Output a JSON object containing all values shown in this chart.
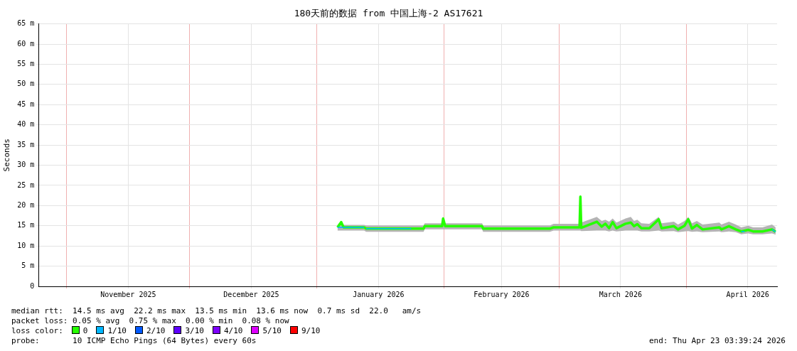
{
  "chart_data": {
    "type": "line",
    "title": "180天前的数据 from 中国上海-2 AS17621",
    "ylabel": "Seconds",
    "xlim": [
      "2025-10-25T03:39",
      "2026-04-23T03:39"
    ],
    "xticks": [
      {
        "value": "2025-11-01",
        "label": null
      },
      {
        "value": "2025-11-16",
        "label": "November 2025"
      },
      {
        "value": "2025-12-01",
        "label": null
      },
      {
        "value": "2025-12-16",
        "label": "December 2025"
      },
      {
        "value": "2026-01-01",
        "label": null
      },
      {
        "value": "2026-01-16",
        "label": "January 2026"
      },
      {
        "value": "2026-02-01",
        "label": null
      },
      {
        "value": "2026-02-15",
        "label": "February 2026"
      },
      {
        "value": "2026-03-01",
        "label": null
      },
      {
        "value": "2026-03-16",
        "label": "March 2026"
      },
      {
        "value": "2026-04-01",
        "label": null
      },
      {
        "value": "2026-04-16",
        "label": "April 2026"
      }
    ],
    "ylim": [
      0,
      65
    ],
    "yticks": [
      0,
      {
        "value": 5,
        "label": "5 m"
      },
      {
        "value": 10,
        "label": "10 m"
      },
      {
        "value": 15,
        "label": "15 m"
      },
      {
        "value": 20,
        "label": "20 m"
      },
      {
        "value": 25,
        "label": "25 m"
      },
      {
        "value": 30,
        "label": "30 m"
      },
      {
        "value": 35,
        "label": "35 m"
      },
      {
        "value": 40,
        "label": "40 m"
      },
      {
        "value": 45,
        "label": "45 m"
      },
      {
        "value": 50,
        "label": "50 m"
      },
      {
        "value": 55,
        "label": "55 m"
      },
      {
        "value": 60,
        "label": "60 m"
      },
      {
        "value": 65,
        "label": "65 m"
      }
    ],
    "grid": true,
    "legend": "bottom",
    "legend_title": "loss color:",
    "marker": "none",
    "series": [
      {
        "name": "0",
        "color": "#26ff00",
        "x": [
          "2026-01-06T00:00",
          "2026-01-06T22:00",
          "2026-01-07T12:00",
          "2026-01-12T12:00",
          "2026-01-13T00:00",
          "2026-01-27T00:00",
          "2026-01-27T06:00",
          "2026-01-31T12:00",
          "2026-01-31T18:00",
          "2026-02-01T06:00",
          "2026-02-10T06:00",
          "2026-02-10T12:00",
          "2026-02-26T19:00",
          "2026-02-27T16:00",
          "2026-03-05T12:00",
          "2026-03-06T00:00",
          "2026-03-06T05:00",
          "2026-03-06T10:00",
          "2026-03-10T05:00",
          "2026-03-11T10:00",
          "2026-03-12T07:00",
          "2026-03-13T05:00",
          "2026-03-14T02:00",
          "2026-03-15T00:00",
          "2026-03-17T05:00",
          "2026-03-18T12:00",
          "2026-03-19T07:00",
          "2026-03-20T02:00",
          "2026-03-21T02:00",
          "2026-03-23T00:00",
          "2026-03-25T07:00",
          "2026-03-26T00:00",
          "2026-03-29T00:00",
          "2026-03-30T00:00",
          "2026-03-31T14:00",
          "2026-04-01T12:00",
          "2026-04-02T10:00",
          "2026-04-03T14:00",
          "2026-04-05T00:00",
          "2026-04-09T02:00",
          "2026-04-09T14:00",
          "2026-04-11T10:00",
          "2026-04-13T02:00",
          "2026-04-14T10:00",
          "2026-04-16T02:00",
          "2026-04-17T07:00",
          "2026-04-19T14:00",
          "2026-04-21T22:00",
          "2026-04-22T19:00"
        ],
        "values": [
          14.6,
          15.9,
          14.6,
          14.6,
          14.3,
          14.3,
          14.9,
          14.9,
          16.8,
          14.9,
          14.9,
          14.3,
          14.3,
          14.6,
          14.6,
          14.6,
          22.2,
          14.5,
          16.0,
          14.8,
          15.5,
          14.4,
          15.9,
          14.4,
          15.5,
          15.8,
          14.9,
          15.4,
          14.4,
          14.4,
          16.6,
          14.4,
          14.9,
          14.1,
          15.0,
          16.6,
          14.3,
          15.2,
          14.1,
          14.6,
          14.1,
          14.9,
          14.1,
          13.6,
          14.0,
          13.6,
          13.6,
          14.1,
          13.5
        ],
        "lower": [
          13.8,
          13.8,
          13.8,
          13.8,
          13.5,
          13.5,
          14.1,
          14.1,
          14.1,
          14.1,
          14.1,
          13.5,
          13.5,
          13.8,
          13.8,
          13.8,
          13.8,
          13.7,
          13.8,
          13.8,
          13.8,
          13.6,
          13.8,
          13.6,
          13.8,
          13.8,
          13.8,
          13.8,
          13.6,
          13.6,
          13.8,
          13.6,
          13.7,
          13.4,
          13.6,
          13.7,
          13.5,
          13.6,
          13.4,
          13.6,
          13.4,
          13.6,
          13.4,
          12.9,
          13.1,
          12.9,
          12.9,
          13.1,
          12.8
        ],
        "upper": [
          15.2,
          16.2,
          15.2,
          15.2,
          15.1,
          15.1,
          15.6,
          15.6,
          17.0,
          15.6,
          15.6,
          15.1,
          15.1,
          15.5,
          15.5,
          15.5,
          22.8,
          15.8,
          17.2,
          16.2,
          16.5,
          16.0,
          16.8,
          15.8,
          16.8,
          17.2,
          16.2,
          16.5,
          15.6,
          15.5,
          17.2,
          15.6,
          16.0,
          15.3,
          16.2,
          17.2,
          15.6,
          16.2,
          15.3,
          15.8,
          15.3,
          16.0,
          15.3,
          14.6,
          15.0,
          14.6,
          14.6,
          15.3,
          14.6
        ]
      },
      {
        "name": "1/10",
        "color": "#00b7ff",
        "x": [
          "2026-01-06T00:00",
          "2026-01-12T12:00",
          "2026-01-12T18:00",
          "2026-01-13T00:00",
          "2026-01-24T00:00",
          "2026-01-25T00:00",
          "2026-04-14T10:00",
          "2026-04-15T06:00",
          "2026-04-16T00:00",
          "2026-04-21T22:00",
          "2026-04-22T19:00"
        ],
        "values": [
          14.6,
          14.6,
          null,
          14.3,
          14.3,
          null,
          13.6,
          13.6,
          null,
          14.1,
          13.5
        ]
      },
      {
        "name": "2/10",
        "color": "#0059ff"
      },
      {
        "name": "3/10",
        "color": "#5e00ff"
      },
      {
        "name": "4/10",
        "color": "#7e00ff"
      },
      {
        "name": "5/10",
        "color": "#dd00ff"
      },
      {
        "name": "9/10",
        "color": "#ff0000"
      }
    ],
    "annotations": [
      "median rtt:  14.5 ms avg  22.2 ms max  13.5 ms min  13.6 ms now  0.7 ms sd  22.0   am/s",
      "packet loss: 0.05 % avg  0.75 % max  0.00 % min  0.08 % now",
      "probe:       10 ICMP Echo Pings (64 Bytes) every 60s",
      "end: Thu Apr 23 03:39:24 2026"
    ]
  }
}
